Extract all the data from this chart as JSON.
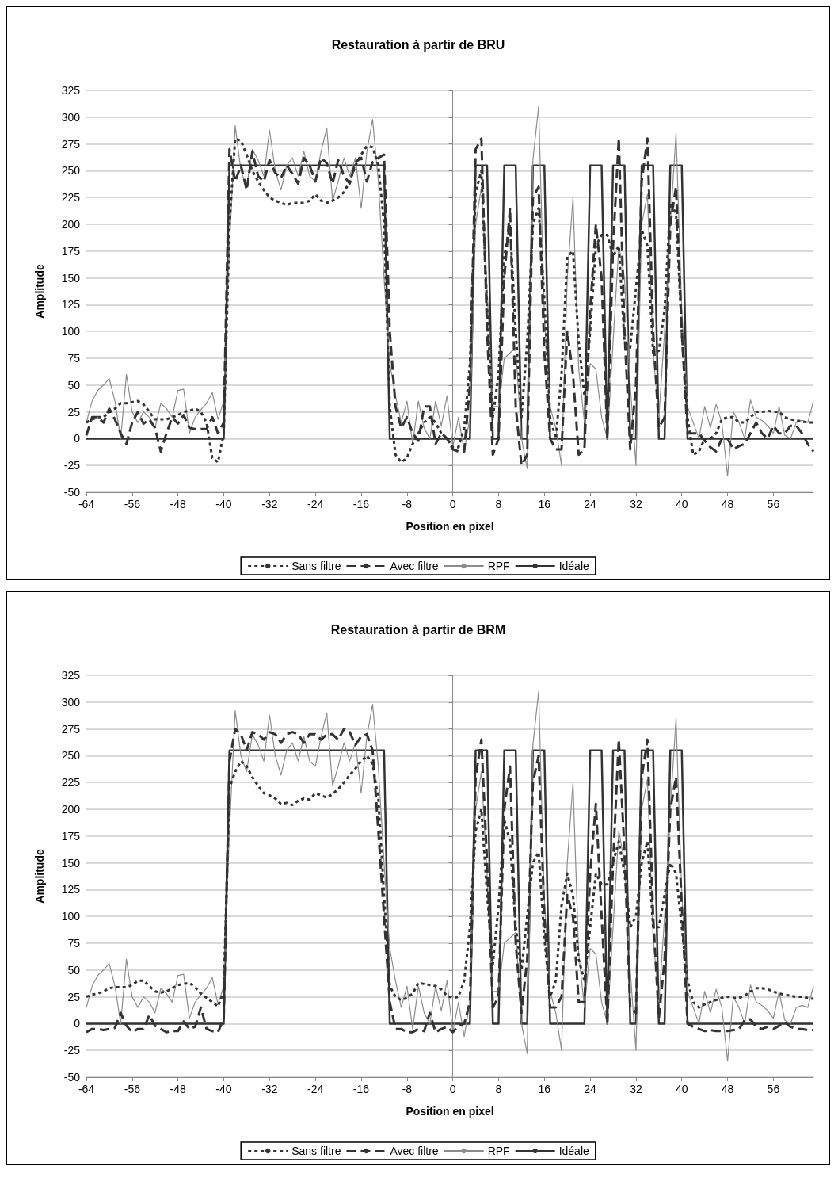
{
  "chart_data": [
    {
      "type": "line",
      "title": "Restauration à partir de BRU",
      "xlabel": "Position en pixel",
      "ylabel": "Amplitude",
      "x": [
        -64,
        -63,
        -62,
        -61,
        -60,
        -59,
        -58,
        -57,
        -56,
        -55,
        -54,
        -53,
        -52,
        -51,
        -50,
        -49,
        -48,
        -47,
        -46,
        -45,
        -44,
        -43,
        -42,
        -41,
        -40,
        -39,
        -38,
        -37,
        -36,
        -35,
        -34,
        -33,
        -32,
        -31,
        -30,
        -29,
        -28,
        -27,
        -26,
        -25,
        -24,
        -23,
        -22,
        -21,
        -20,
        -19,
        -18,
        -17,
        -16,
        -15,
        -14,
        -13,
        -12,
        -11,
        -10,
        -9,
        -8,
        -7,
        -6,
        -5,
        -4,
        -3,
        -2,
        -1,
        0,
        1,
        2,
        3,
        4,
        5,
        6,
        7,
        8,
        9,
        10,
        11,
        12,
        13,
        14,
        15,
        16,
        17,
        18,
        19,
        20,
        21,
        22,
        23,
        24,
        25,
        26,
        27,
        28,
        29,
        30,
        31,
        32,
        33,
        34,
        35,
        36,
        37,
        38,
        39,
        40,
        41,
        42,
        43,
        44,
        45,
        46,
        47,
        48,
        49,
        50,
        51,
        52,
        53,
        54,
        55,
        56,
        57,
        58,
        59,
        60,
        61,
        62,
        63
      ],
      "xlim": [
        -64,
        63
      ],
      "xticks": [
        -64,
        -56,
        -48,
        -40,
        -32,
        -24,
        -16,
        -8,
        0,
        8,
        16,
        24,
        32,
        40,
        48,
        56
      ],
      "ylim": [
        -50,
        325
      ],
      "yticks": [
        -50,
        -25,
        0,
        25,
        50,
        75,
        100,
        125,
        150,
        175,
        200,
        225,
        250,
        275,
        300,
        325
      ],
      "grid": "y",
      "legend": "bottom",
      "marker": "none",
      "series": [
        {
          "name": "Sans filtre",
          "color": "#333333",
          "line_style": "dotted",
          "values": [
            15,
            18,
            20,
            20,
            25,
            28,
            33,
            33,
            34,
            35,
            32,
            25,
            18,
            18,
            18,
            20,
            22,
            25,
            26,
            28,
            25,
            15,
            -18,
            -22,
            5,
            200,
            280,
            278,
            265,
            250,
            240,
            232,
            225,
            222,
            220,
            218,
            220,
            220,
            220,
            222,
            228,
            222,
            220,
            222,
            225,
            230,
            240,
            255,
            265,
            273,
            272,
            255,
            200,
            30,
            -15,
            -22,
            -18,
            -5,
            5,
            15,
            20,
            15,
            5,
            0,
            -8,
            -8,
            10,
            70,
            230,
            250,
            120,
            20,
            60,
            170,
            200,
            100,
            20,
            90,
            200,
            215,
            130,
            20,
            0,
            60,
            170,
            175,
            90,
            40,
            100,
            180,
            190,
            190,
            170,
            180,
            90,
            85,
            140,
            195,
            180,
            80,
            82,
            120,
            220,
            210,
            100,
            20,
            -15,
            -12,
            0,
            0,
            5,
            18,
            20,
            20,
            15,
            15,
            20,
            25,
            25,
            26,
            25,
            25,
            20,
            18,
            17,
            16,
            15,
            15
          ]
        },
        {
          "name": "Avec filtre",
          "color": "#333333",
          "line_style": "dashed",
          "values": [
            3,
            20,
            20,
            15,
            28,
            18,
            5,
            -5,
            15,
            25,
            14,
            18,
            10,
            -12,
            5,
            20,
            14,
            22,
            10,
            9,
            9,
            9,
            20,
            5,
            15,
            270,
            240,
            255,
            232,
            268,
            245,
            240,
            260,
            248,
            243,
            255,
            247,
            238,
            262,
            255,
            240,
            262,
            257,
            238,
            260,
            245,
            238,
            258,
            262,
            240,
            258,
            262,
            265,
            100,
            30,
            10,
            20,
            5,
            -2,
            30,
            30,
            -5,
            5,
            0,
            -10,
            -12,
            -12,
            50,
            270,
            280,
            100,
            -15,
            0,
            150,
            215,
            30,
            -25,
            -15,
            225,
            235,
            80,
            0,
            -10,
            -10,
            100,
            60,
            -15,
            -10,
            120,
            200,
            150,
            0,
            180,
            280,
            100,
            -10,
            50,
            240,
            280,
            100,
            10,
            20,
            200,
            235,
            100,
            5,
            5,
            5,
            -2,
            -8,
            -12,
            0,
            0,
            -10,
            -7,
            -5,
            5,
            15,
            5,
            0,
            12,
            5,
            5,
            12,
            12,
            5,
            -5,
            -12
          ]
        },
        {
          "name": "RPF",
          "color": "#8c8c8c",
          "line_style": "solid",
          "values": [
            15,
            35,
            45,
            50,
            56,
            35,
            0,
            60,
            25,
            15,
            25,
            20,
            10,
            33,
            28,
            20,
            45,
            46,
            5,
            20,
            27,
            33,
            43,
            18,
            35,
            180,
            292,
            250,
            235,
            270,
            260,
            245,
            288,
            250,
            232,
            255,
            262,
            245,
            268,
            245,
            240,
            268,
            290,
            222,
            240,
            262,
            245,
            262,
            215,
            268,
            298,
            240,
            150,
            70,
            40,
            15,
            35,
            -5,
            35,
            10,
            0,
            35,
            12,
            40,
            -8,
            20,
            -12,
            20,
            200,
            235,
            140,
            30,
            30,
            75,
            80,
            85,
            0,
            -28,
            260,
            310,
            115,
            30,
            10,
            -25,
            150,
            225,
            65,
            15,
            70,
            65,
            20,
            0,
            90,
            180,
            150,
            50,
            -25,
            200,
            228,
            80,
            20,
            100,
            200,
            285,
            120,
            30,
            15,
            0,
            30,
            10,
            32,
            15,
            -35,
            25,
            15,
            0,
            36,
            20,
            17,
            12,
            5,
            30,
            3,
            0,
            15,
            17,
            15,
            35
          ]
        },
        {
          "name": "Idéale",
          "color": "#333333",
          "line_style": "solid",
          "values": [
            0,
            0,
            0,
            0,
            0,
            0,
            0,
            0,
            0,
            0,
            0,
            0,
            0,
            0,
            0,
            0,
            0,
            0,
            0,
            0,
            0,
            0,
            0,
            0,
            0,
            255,
            255,
            255,
            255,
            255,
            255,
            255,
            255,
            255,
            255,
            255,
            255,
            255,
            255,
            255,
            255,
            255,
            255,
            255,
            255,
            255,
            255,
            255,
            255,
            255,
            255,
            255,
            255,
            0,
            0,
            0,
            0,
            0,
            0,
            0,
            0,
            0,
            0,
            0,
            0,
            0,
            0,
            0,
            255,
            255,
            255,
            0,
            0,
            255,
            255,
            255,
            0,
            0,
            255,
            255,
            255,
            0,
            0,
            0,
            0,
            0,
            0,
            0,
            255,
            255,
            255,
            0,
            255,
            255,
            255,
            0,
            0,
            255,
            255,
            255,
            0,
            0,
            255,
            255,
            255,
            0,
            0,
            0,
            0,
            0,
            0,
            0,
            0,
            0,
            0,
            0,
            0,
            0,
            0,
            0,
            0,
            0,
            0,
            0,
            0,
            0,
            0,
            0
          ]
        }
      ]
    },
    {
      "type": "line",
      "title": "Restauration à partir de BRM",
      "xlabel": "Position en pixel",
      "ylabel": "Amplitude",
      "x": [
        -64,
        -63,
        -62,
        -61,
        -60,
        -59,
        -58,
        -57,
        -56,
        -55,
        -54,
        -53,
        -52,
        -51,
        -50,
        -49,
        -48,
        -47,
        -46,
        -45,
        -44,
        -43,
        -42,
        -41,
        -40,
        -39,
        -38,
        -37,
        -36,
        -35,
        -34,
        -33,
        -32,
        -31,
        -30,
        -29,
        -28,
        -27,
        -26,
        -25,
        -24,
        -23,
        -22,
        -21,
        -20,
        -19,
        -18,
        -17,
        -16,
        -15,
        -14,
        -13,
        -12,
        -11,
        -10,
        -9,
        -8,
        -7,
        -6,
        -5,
        -4,
        -3,
        -2,
        -1,
        0,
        1,
        2,
        3,
        4,
        5,
        6,
        7,
        8,
        9,
        10,
        11,
        12,
        13,
        14,
        15,
        16,
        17,
        18,
        19,
        20,
        21,
        22,
        23,
        24,
        25,
        26,
        27,
        28,
        29,
        30,
        31,
        32,
        33,
        34,
        35,
        36,
        37,
        38,
        39,
        40,
        41,
        42,
        43,
        44,
        45,
        46,
        47,
        48,
        49,
        50,
        51,
        52,
        53,
        54,
        55,
        56,
        57,
        58,
        59,
        60,
        61,
        62,
        63
      ],
      "xlim": [
        -64,
        63
      ],
      "xticks": [
        -64,
        -56,
        -48,
        -40,
        -32,
        -24,
        -16,
        -8,
        0,
        8,
        16,
        24,
        32,
        40,
        48,
        56
      ],
      "ylim": [
        -50,
        325
      ],
      "yticks": [
        -50,
        -25,
        0,
        25,
        50,
        75,
        100,
        125,
        150,
        175,
        200,
        225,
        250,
        275,
        300,
        325
      ],
      "grid": "y",
      "legend": "bottom",
      "marker": "none",
      "series": [
        {
          "name": "Sans filtre",
          "color": "#333333",
          "line_style": "dotted",
          "values": [
            25,
            27,
            28,
            30,
            33,
            34,
            34,
            34,
            36,
            40,
            40,
            35,
            30,
            29,
            30,
            33,
            36,
            37,
            38,
            34,
            28,
            24,
            20,
            16,
            30,
            220,
            235,
            245,
            240,
            230,
            222,
            215,
            213,
            210,
            205,
            206,
            204,
            208,
            210,
            209,
            215,
            213,
            211,
            214,
            219,
            225,
            232,
            238,
            245,
            250,
            242,
            210,
            120,
            35,
            25,
            22,
            24,
            28,
            38,
            37,
            36,
            35,
            32,
            26,
            24,
            25,
            40,
            90,
            180,
            200,
            120,
            55,
            110,
            190,
            170,
            90,
            50,
            100,
            150,
            160,
            80,
            25,
            40,
            110,
            140,
            120,
            60,
            40,
            90,
            140,
            130,
            130,
            150,
            170,
            140,
            90,
            100,
            150,
            170,
            90,
            90,
            120,
            150,
            140,
            90,
            40,
            20,
            15,
            18,
            20,
            22,
            24,
            25,
            24,
            24,
            26,
            30,
            33,
            33,
            32,
            30,
            28,
            27,
            26,
            25,
            25,
            24,
            23
          ]
        },
        {
          "name": "Avec filtre",
          "color": "#333333",
          "line_style": "dashed",
          "values": [
            -8,
            -5,
            -5,
            -6,
            -5,
            -4,
            10,
            -2,
            -8,
            -5,
            -5,
            8,
            -2,
            -5,
            -8,
            -7,
            -7,
            2,
            -5,
            -3,
            15,
            -5,
            -7,
            -8,
            5,
            245,
            275,
            270,
            255,
            272,
            270,
            265,
            272,
            270,
            262,
            270,
            272,
            270,
            262,
            270,
            270,
            265,
            270,
            270,
            265,
            275,
            272,
            260,
            268,
            270,
            255,
            180,
            100,
            20,
            -5,
            -5,
            -8,
            -8,
            -5,
            -7,
            10,
            -8,
            -5,
            -3,
            -8,
            -2,
            0,
            20,
            230,
            265,
            150,
            15,
            25,
            200,
            240,
            75,
            10,
            60,
            225,
            250,
            100,
            15,
            15,
            25,
            120,
            100,
            20,
            20,
            140,
            205,
            100,
            0,
            150,
            265,
            160,
            15,
            10,
            230,
            265,
            100,
            5,
            60,
            200,
            230,
            110,
            0,
            -3,
            -5,
            -7,
            -6,
            -7,
            -7,
            -7,
            -6,
            -5,
            3,
            4,
            -3,
            -5,
            -3,
            -5,
            -2,
            1,
            -3,
            -5,
            -5,
            -6,
            -6
          ]
        },
        {
          "name": "RPF",
          "color": "#8c8c8c",
          "line_style": "solid",
          "values": [
            15,
            35,
            45,
            50,
            56,
            35,
            0,
            60,
            25,
            15,
            25,
            20,
            10,
            33,
            28,
            20,
            45,
            46,
            5,
            20,
            27,
            33,
            43,
            18,
            35,
            180,
            292,
            250,
            235,
            270,
            260,
            245,
            288,
            250,
            232,
            255,
            262,
            245,
            268,
            245,
            240,
            268,
            290,
            222,
            240,
            262,
            245,
            262,
            215,
            268,
            298,
            240,
            150,
            70,
            40,
            15,
            35,
            -5,
            35,
            10,
            0,
            35,
            12,
            40,
            -8,
            20,
            -12,
            20,
            200,
            235,
            140,
            30,
            30,
            75,
            80,
            85,
            0,
            -28,
            260,
            310,
            115,
            30,
            10,
            -25,
            150,
            225,
            65,
            15,
            70,
            65,
            20,
            0,
            90,
            180,
            150,
            50,
            -25,
            200,
            228,
            80,
            20,
            100,
            200,
            285,
            120,
            30,
            15,
            0,
            30,
            10,
            32,
            15,
            -35,
            25,
            15,
            0,
            36,
            20,
            17,
            12,
            5,
            30,
            3,
            0,
            15,
            17,
            15,
            35
          ]
        },
        {
          "name": "Idéale",
          "color": "#333333",
          "line_style": "solid",
          "values": [
            0,
            0,
            0,
            0,
            0,
            0,
            0,
            0,
            0,
            0,
            0,
            0,
            0,
            0,
            0,
            0,
            0,
            0,
            0,
            0,
            0,
            0,
            0,
            0,
            0,
            255,
            255,
            255,
            255,
            255,
            255,
            255,
            255,
            255,
            255,
            255,
            255,
            255,
            255,
            255,
            255,
            255,
            255,
            255,
            255,
            255,
            255,
            255,
            255,
            255,
            255,
            255,
            255,
            0,
            0,
            0,
            0,
            0,
            0,
            0,
            0,
            0,
            0,
            0,
            0,
            0,
            0,
            0,
            255,
            255,
            255,
            0,
            0,
            255,
            255,
            255,
            0,
            0,
            255,
            255,
            255,
            0,
            0,
            0,
            0,
            0,
            0,
            0,
            255,
            255,
            255,
            0,
            255,
            255,
            255,
            0,
            0,
            255,
            255,
            255,
            0,
            0,
            255,
            255,
            255,
            0,
            0,
            0,
            0,
            0,
            0,
            0,
            0,
            0,
            0,
            0,
            0,
            0,
            0,
            0,
            0,
            0,
            0,
            0,
            0,
            0,
            0,
            0
          ]
        }
      ]
    }
  ]
}
